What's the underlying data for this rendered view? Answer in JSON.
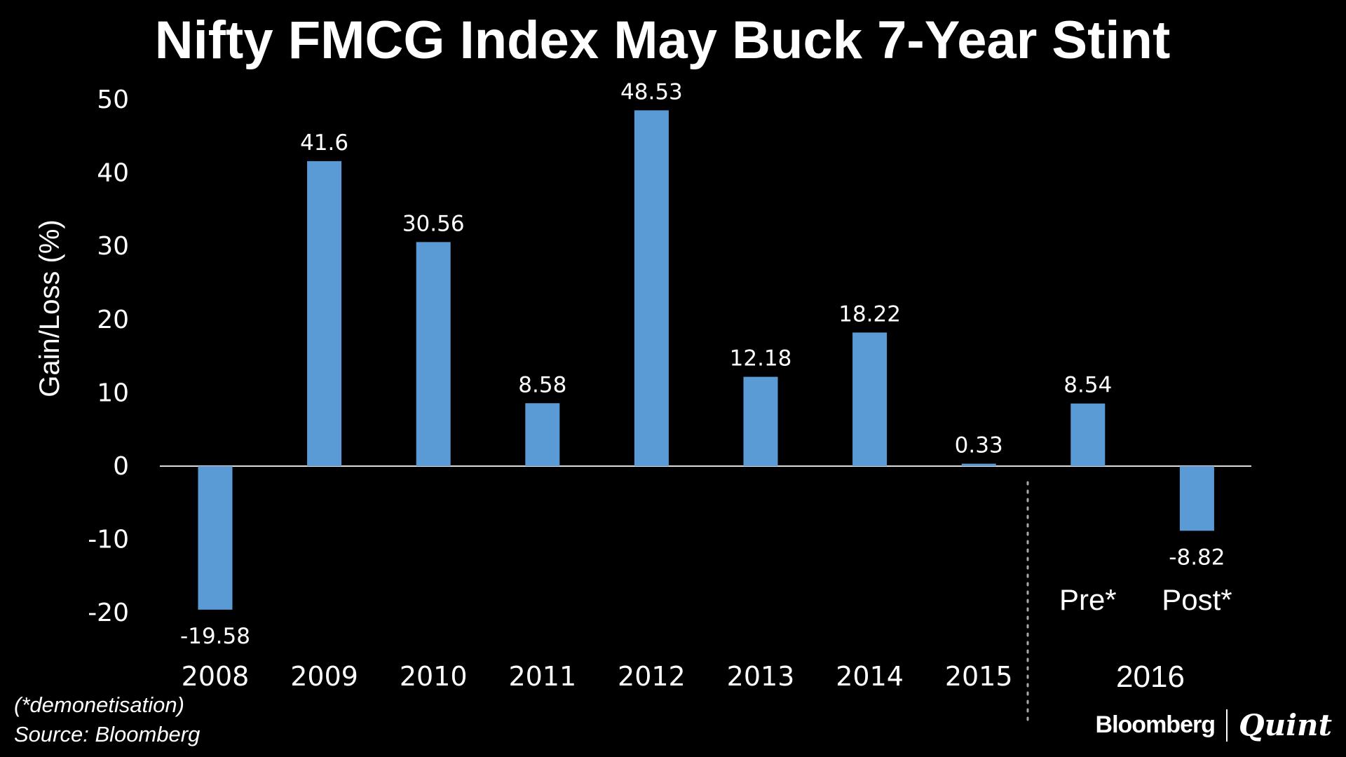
{
  "chart_data": {
    "type": "bar",
    "title": "Nifty FMCG Index May Buck 7-Year Stint",
    "ylabel": "Gain/Loss (%)",
    "xlabel": "",
    "categories": [
      "2008",
      "2009",
      "2010",
      "2011",
      "2012",
      "2013",
      "2014",
      "2015",
      "Pre*",
      "Post*"
    ],
    "group_label": "2016",
    "values": [
      -19.58,
      41.6,
      30.56,
      8.58,
      48.53,
      12.18,
      18.22,
      0.33,
      8.54,
      -8.82
    ],
    "data_labels": [
      "-19.58",
      "41.6",
      "30.56",
      "8.58",
      "48.53",
      "12.18",
      "18.22",
      "0.33",
      "8.54",
      "-8.82"
    ],
    "yticks": [
      50,
      40,
      30,
      20,
      10,
      0,
      -10,
      -20
    ],
    "ylim": [
      -20,
      50
    ],
    "grid": false,
    "bar_color": "#5b9bd5"
  },
  "footnote": "(*demonetisation)",
  "source": "Source: Bloomberg",
  "logo": {
    "left": "Bloomberg",
    "right": "Quint"
  }
}
